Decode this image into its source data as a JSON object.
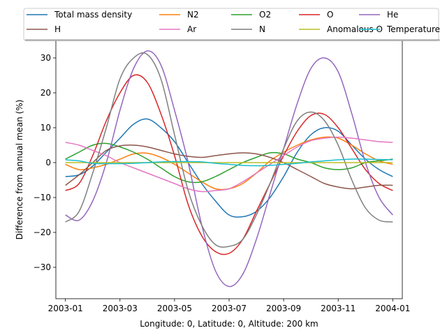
{
  "chart_data": {
    "type": "line",
    "xlabel": "Longitude: 0, Latitude: 0, Altitude: 200 km",
    "ylabel": "Difference from annual mean (%)",
    "x_ticks": [
      "2003-01",
      "2003-03",
      "2003-05",
      "2003-07",
      "2003-09",
      "2003-11",
      "2004-01"
    ],
    "y_ticks": [
      -30,
      -20,
      -10,
      0,
      10,
      20,
      30
    ],
    "xlim": [
      -0.35,
      12.35
    ],
    "ylim": [
      -39,
      35
    ],
    "legend_placement": "top-center, outside plot, 5 columns",
    "x": [
      0,
      0.5,
      1,
      1.5,
      2,
      2.5,
      3,
      3.5,
      4,
      4.5,
      5,
      5.5,
      6,
      6.5,
      7,
      7.5,
      8,
      8.5,
      9,
      9.5,
      10,
      10.5,
      11,
      11.5,
      12
    ],
    "series": [
      {
        "name": "Total mass density",
        "color": "#1f77b4",
        "values": [
          -4,
          -3.5,
          -1,
          3,
          7,
          11,
          12.5,
          10,
          6,
          0,
          -6,
          -11,
          -15,
          -15.5,
          -14,
          -10,
          -4,
          3,
          8,
          10,
          9,
          5,
          1,
          -2,
          -4
        ]
      },
      {
        "name": "N2",
        "color": "#ff7f0e",
        "values": [
          -0.5,
          -2,
          -1.5,
          -0.5,
          1,
          2.5,
          2.7,
          1.5,
          -0.5,
          -3,
          -5.5,
          -7.5,
          -7.5,
          -6,
          -3,
          0.5,
          3,
          5,
          6.5,
          7.3,
          7,
          5,
          2.5,
          0.5,
          -0.5
        ]
      },
      {
        "name": "O2",
        "color": "#2ca02c",
        "values": [
          1,
          3,
          5,
          5.5,
          4.5,
          3,
          1,
          -1.5,
          -4,
          -5.5,
          -5.5,
          -4,
          -2,
          0,
          1.5,
          2.8,
          2.5,
          1,
          0,
          -1.5,
          -2,
          -1.5,
          0,
          0.5,
          1
        ]
      },
      {
        "name": "O",
        "color": "#d62728",
        "values": [
          -8,
          -6,
          2,
          12,
          20,
          25,
          23,
          14,
          2,
          -12,
          -21,
          -25.5,
          -26,
          -22,
          -14,
          -6,
          2,
          9,
          13.5,
          13.8,
          10,
          4,
          -2,
          -6,
          -8
        ]
      },
      {
        "name": "He",
        "color": "#9467bd",
        "values": [
          -15,
          -16.5,
          -11,
          0,
          15,
          27,
          32,
          28,
          15,
          0,
          -18,
          -31,
          -35.5,
          -32,
          -22,
          -9,
          4,
          17,
          27,
          30,
          26,
          14,
          0,
          -10,
          -15
        ]
      },
      {
        "name": "H",
        "color": "#8c564b",
        "values": [
          -6.5,
          -3.5,
          0,
          3.5,
          4.8,
          5,
          4.5,
          3.5,
          2.5,
          1.8,
          1.5,
          2,
          2.5,
          2.8,
          2.5,
          1.5,
          0,
          -2,
          -4,
          -6,
          -7,
          -7.5,
          -7,
          -6.5,
          -6.5
        ]
      },
      {
        "name": "Ar",
        "color": "#e377c2",
        "values": [
          5.8,
          5,
          3.5,
          2,
          0,
          -1.5,
          -3,
          -4.5,
          -6,
          -7.5,
          -8.3,
          -8,
          -7.5,
          -5.5,
          -3,
          -0.5,
          2,
          4.5,
          6.3,
          7,
          7.3,
          7,
          6.5,
          6,
          5.8
        ]
      },
      {
        "name": "N",
        "color": "#7f7f7f",
        "values": [
          -17,
          -14,
          -3,
          10,
          24,
          30,
          31,
          24,
          8,
          -8,
          -18,
          -23.5,
          -24,
          -22,
          -15,
          -6,
          4,
          12,
          14.5,
          12,
          5,
          -5,
          -13,
          -16.5,
          -17
        ]
      },
      {
        "name": "Anomalous O",
        "color": "#bcbd22",
        "values": [
          0,
          0,
          0,
          0,
          0,
          0,
          0,
          0,
          0,
          0,
          0,
          0,
          0,
          0,
          0,
          0,
          0,
          0,
          0,
          0,
          0,
          0,
          0,
          0,
          0
        ]
      },
      {
        "name": "Temperature",
        "color": "#17becf",
        "values": [
          0.8,
          0.5,
          -0.2,
          -0.3,
          -0.3,
          -0.2,
          0,
          0.2,
          0.3,
          0.3,
          0.2,
          -0.2,
          -0.5,
          -0.8,
          -0.9,
          -0.8,
          -0.5,
          -0.2,
          0.2,
          0.5,
          0.8,
          1,
          1,
          0.9,
          0.8
        ]
      }
    ]
  }
}
